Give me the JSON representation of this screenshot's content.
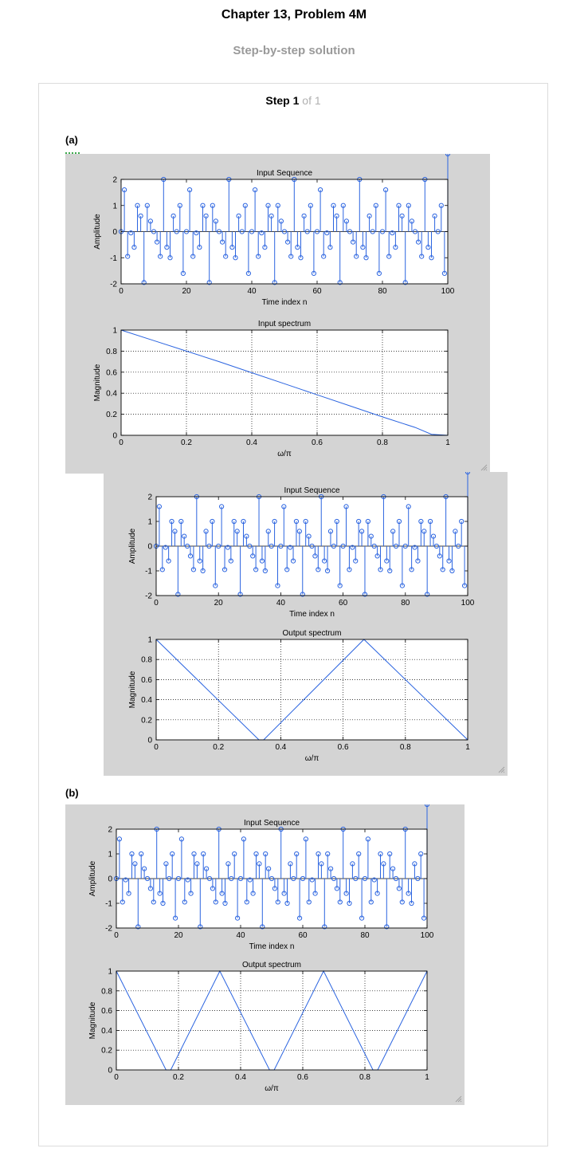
{
  "page": {
    "title": "Chapter 13, Problem 4M",
    "subtitle": "Step-by-step solution",
    "step_label": "Step",
    "step_number": "1",
    "step_of": "of 1",
    "part_a": "(a)",
    "part_b": "(b)"
  },
  "colors": {
    "line": "#2b64e0",
    "figure_bg": "#d4d4d4",
    "axes_bg": "#ffffff"
  },
  "sequence": {
    "n": [
      0,
      1,
      2,
      3,
      4,
      5,
      6,
      7,
      8,
      9,
      10,
      11,
      12,
      13,
      14,
      15,
      16,
      17,
      18,
      19,
      20,
      21,
      22,
      23,
      24,
      25,
      26,
      27,
      28,
      29,
      30,
      31,
      32,
      33,
      34,
      35,
      36,
      37,
      38,
      39,
      40,
      41,
      42,
      43,
      44,
      45,
      46,
      47,
      48,
      49,
      50,
      51,
      52,
      53,
      54,
      55,
      56,
      57,
      58,
      59,
      60,
      61,
      62,
      63,
      64,
      65,
      66,
      67,
      68,
      69,
      70,
      71,
      72,
      73,
      74,
      75,
      76,
      77,
      78,
      79,
      80,
      81,
      82,
      83,
      84,
      85,
      86,
      87,
      88,
      89,
      90,
      91,
      92,
      93,
      94,
      95,
      96,
      97,
      98,
      99,
      100
    ],
    "x": [
      0,
      1.6,
      -0.95,
      -0.05,
      -0.6,
      1.0,
      0.6,
      -1.95,
      1.0,
      0.4,
      0,
      -0.4,
      -0.95,
      2.0,
      -0.6,
      -1.0,
      0.6,
      0,
      1.0,
      -1.6,
      0,
      1.6,
      -0.95,
      -0.05,
      -0.6,
      1.0,
      0.6,
      -1.95,
      1.0,
      0.4,
      0,
      -0.4,
      -0.95,
      2.0,
      -0.6,
      -1.0,
      0.6,
      0,
      1.0,
      -1.6,
      0,
      1.6,
      -0.95,
      -0.05,
      -0.6,
      1.0,
      0.6,
      -1.95,
      1.0,
      0.4,
      0,
      -0.4,
      -0.95,
      2.0,
      -0.6,
      -1.0,
      0.6,
      0,
      1.0,
      -1.6,
      0,
      1.6,
      -0.95,
      -0.05,
      -0.6,
      1.0,
      0.6,
      -1.95,
      1.0,
      0.4,
      0,
      -0.4,
      -0.95,
      2.0,
      -0.6,
      -1.0,
      0.6,
      0,
      1.0,
      -1.6,
      0,
      1.6,
      -0.95,
      -0.05,
      -0.6,
      1.0,
      0.6,
      -1.95,
      1.0,
      0.4,
      0,
      -0.4,
      -0.95,
      2.0,
      -0.6,
      -1.0,
      0.6,
      0,
      1.0,
      -1.6
    ]
  },
  "chart_data": [
    {
      "type": "scatter",
      "figure": 1,
      "title": "Input Sequence",
      "xlabel": "Time index n",
      "ylabel": "Amplitude",
      "xlim": [
        0,
        100
      ],
      "ylim": [
        -2,
        2
      ],
      "xticks": [
        "0",
        "20",
        "40",
        "60",
        "80",
        "100"
      ],
      "yticks": [
        "-2",
        "-1",
        "0",
        "1",
        "2"
      ],
      "grid": false,
      "series": [
        {
          "source": "sequence"
        }
      ]
    },
    {
      "type": "line",
      "figure": 1,
      "title": "Input spectrum",
      "xlabel": "ω/π",
      "ylabel": "Magnitude",
      "xlim": [
        0,
        1
      ],
      "ylim": [
        0,
        1
      ],
      "xticks": [
        "0",
        "0.2",
        "0.4",
        "0.6",
        "0.8",
        "1"
      ],
      "yticks": [
        "0",
        "0.2",
        "0.4",
        "0.6",
        "0.8",
        "1"
      ],
      "grid": true,
      "series": [
        {
          "x": [
            0,
            0.1,
            0.2,
            0.3,
            0.4,
            0.5,
            0.6,
            0.7,
            0.8,
            0.9,
            0.95,
            1.0
          ],
          "y": [
            1.0,
            0.9,
            0.8,
            0.7,
            0.595,
            0.49,
            0.385,
            0.28,
            0.175,
            0.075,
            0.01,
            0.0
          ]
        }
      ]
    },
    {
      "type": "scatter",
      "figure": 2,
      "title": "Input Sequence",
      "xlabel": "Time index n",
      "ylabel": "Amplitude",
      "xlim": [
        0,
        100
      ],
      "ylim": [
        -2,
        2
      ],
      "xticks": [
        "0",
        "20",
        "40",
        "60",
        "80",
        "100"
      ],
      "yticks": [
        "-2",
        "-1",
        "0",
        "1",
        "2"
      ],
      "grid": false,
      "series": [
        {
          "source": "sequence"
        }
      ]
    },
    {
      "type": "line",
      "figure": 2,
      "title": "Output spectrum",
      "xlabel": "ω/π",
      "ylabel": "Magnitude",
      "xlim": [
        0,
        1
      ],
      "ylim": [
        0,
        1
      ],
      "xticks": [
        "0",
        "0.2",
        "0.4",
        "0.6",
        "0.8",
        "1"
      ],
      "yticks": [
        "0",
        "0.2",
        "0.4",
        "0.6",
        "0.8",
        "1"
      ],
      "grid": true,
      "series": [
        {
          "x": [
            0,
            0.33,
            0.345,
            0.667,
            1.0
          ],
          "y": [
            1.0,
            0.0,
            0.0,
            1.0,
            0.0
          ]
        }
      ]
    },
    {
      "type": "scatter",
      "figure": 3,
      "title": "Input Sequence",
      "xlabel": "Time index n",
      "ylabel": "Amplitude",
      "xlim": [
        0,
        100
      ],
      "ylim": [
        -2,
        2
      ],
      "xticks": [
        "0",
        "20",
        "40",
        "60",
        "80",
        "100"
      ],
      "yticks": [
        "-2",
        "-1",
        "0",
        "1",
        "2"
      ],
      "grid": false,
      "series": [
        {
          "source": "sequence"
        }
      ]
    },
    {
      "type": "line",
      "figure": 3,
      "title": "Output spectrum",
      "xlabel": "ω/π",
      "ylabel": "Magnitude",
      "xlim": [
        0,
        1
      ],
      "ylim": [
        0,
        1
      ],
      "xticks": [
        "0",
        "0.2",
        "0.4",
        "0.6",
        "0.8",
        "1"
      ],
      "yticks": [
        "0",
        "0.2",
        "0.4",
        "0.6",
        "0.8",
        "1"
      ],
      "grid": true,
      "series": [
        {
          "x": [
            0,
            0.16,
            0.175,
            0.333,
            0.493,
            0.508,
            0.667,
            0.826,
            0.841,
            1.0
          ],
          "y": [
            1.0,
            0.0,
            0.0,
            1.0,
            0.0,
            0.0,
            1.0,
            0.0,
            0.0,
            1.0
          ]
        }
      ]
    }
  ]
}
